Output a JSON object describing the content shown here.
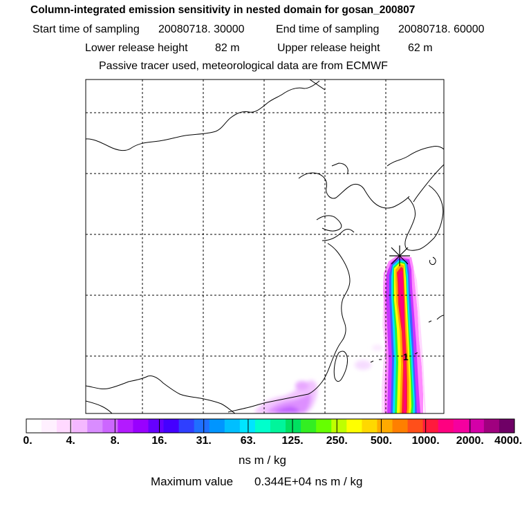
{
  "header": {
    "title": "Column-integrated emission sensitivity in nested domain for gosan_200807",
    "start_label": "Start time of sampling",
    "start_value": "20080718. 30000",
    "end_label": "End time of sampling",
    "end_value": "20080718. 60000",
    "lower_label": "Lower release height",
    "lower_value": "82 m",
    "upper_label": "Upper release height",
    "upper_value": "62 m",
    "tracer_note": "Passive tracer used, meteorological data are from ECMWF"
  },
  "map": {
    "marker_icon": "release-star-icon",
    "plume_label": "1"
  },
  "colorbar": {
    "colors": [
      "#ffffff",
      "#fff0ff",
      "#ffd9ff",
      "#f4b8ff",
      "#d98cff",
      "#cc66ff",
      "#b31aff",
      "#9900ff",
      "#6600ff",
      "#4400ff",
      "#2f3fff",
      "#1f6fff",
      "#0095ff",
      "#00bfff",
      "#00e5ff",
      "#00ffcc",
      "#00f59b",
      "#00e060",
      "#33ee22",
      "#66ff00",
      "#bfff00",
      "#ffff00",
      "#ffd800",
      "#ffaa00",
      "#ff7f00",
      "#ff4f1a",
      "#ff1a3c",
      "#ff0080",
      "#f5009f",
      "#d400a8",
      "#a0007f",
      "#6f0066"
    ],
    "tick_labels": [
      "0.",
      "4.",
      "8.",
      "16.",
      "31.",
      "63.",
      "125.",
      "250.",
      "500.",
      "1000.",
      "2000.",
      "4000."
    ],
    "units": "ns m / kg",
    "max_label": "Maximum value",
    "max_value": "0.344E+04 ns m / kg"
  }
}
